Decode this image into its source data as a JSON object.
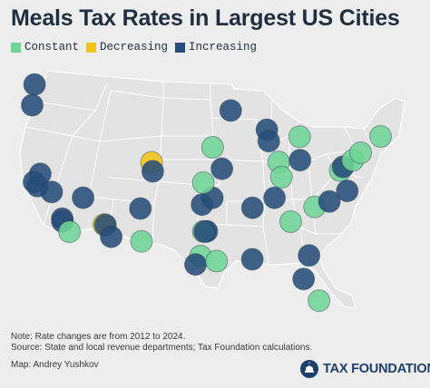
{
  "title": "Meals Tax Rates in Largest US Cities",
  "legend": [
    {
      "label": "Constant",
      "color": "#6fd596"
    },
    {
      "label": "Decreasing",
      "color": "#f2c318"
    },
    {
      "label": "Increasing",
      "color": "#274d7a"
    }
  ],
  "colors": {
    "constant": "#6fd596",
    "decreasing": "#f2c318",
    "increasing": "#274d7a",
    "land": "#e3e3e3",
    "border": "#ffffff",
    "background": "#ededed"
  },
  "note_line1": "Note: Rate changes are from 2012 to 2024.",
  "note_line2": "Source: State and local revenue departments; Tax Foundation calculations.",
  "credit": "Map: Andrey Yushkov",
  "brand": {
    "name": "TAX FOUNDATION",
    "icon": "capitol-dome-icon"
  },
  "cities": [
    {
      "lon": -122.33,
      "lat": 47.61,
      "status": "increasing"
    },
    {
      "lon": -122.68,
      "lat": 45.52,
      "status": "increasing"
    },
    {
      "lon": -122.42,
      "lat": 37.77,
      "status": "increasing"
    },
    {
      "lon": -121.89,
      "lat": 37.34,
      "status": "increasing"
    },
    {
      "lon": -121.49,
      "lat": 38.58,
      "status": "increasing"
    },
    {
      "lon": -119.79,
      "lat": 36.74,
      "status": "increasing"
    },
    {
      "lon": -118.24,
      "lat": 34.05,
      "status": "increasing"
    },
    {
      "lon": -118.19,
      "lat": 33.77,
      "status": "increasing"
    },
    {
      "lon": -117.16,
      "lat": 32.72,
      "status": "constant"
    },
    {
      "lon": -115.14,
      "lat": 36.17,
      "status": "increasing"
    },
    {
      "lon": -112.07,
      "lat": 33.45,
      "status": "decreasing"
    },
    {
      "lon": -111.83,
      "lat": 33.42,
      "status": "increasing"
    },
    {
      "lon": -110.97,
      "lat": 32.22,
      "status": "increasing"
    },
    {
      "lon": -106.65,
      "lat": 35.08,
      "status": "increasing"
    },
    {
      "lon": -106.49,
      "lat": 31.76,
      "status": "constant"
    },
    {
      "lon": -104.99,
      "lat": 39.74,
      "status": "decreasing"
    },
    {
      "lon": -104.82,
      "lat": 38.83,
      "status": "increasing"
    },
    {
      "lon": -97.52,
      "lat": 35.47,
      "status": "increasing"
    },
    {
      "lon": -95.99,
      "lat": 36.15,
      "status": "increasing"
    },
    {
      "lon": -94.58,
      "lat": 39.1,
      "status": "increasing"
    },
    {
      "lon": -93.27,
      "lat": 44.98,
      "status": "increasing"
    },
    {
      "lon": -95.94,
      "lat": 41.26,
      "status": "constant"
    },
    {
      "lon": -97.33,
      "lat": 37.69,
      "status": "constant"
    },
    {
      "lon": -96.8,
      "lat": 32.78,
      "status": "increasing"
    },
    {
      "lon": -97.33,
      "lat": 32.76,
      "status": "constant"
    },
    {
      "lon": -97.11,
      "lat": 32.74,
      "status": "increasing"
    },
    {
      "lon": -97.74,
      "lat": 30.27,
      "status": "constant"
    },
    {
      "lon": -98.49,
      "lat": 29.42,
      "status": "increasing"
    },
    {
      "lon": -95.37,
      "lat": 29.76,
      "status": "constant"
    },
    {
      "lon": -90.07,
      "lat": 29.95,
      "status": "increasing"
    },
    {
      "lon": -90.05,
      "lat": 35.15,
      "status": "increasing"
    },
    {
      "lon": -86.78,
      "lat": 36.16,
      "status": "increasing"
    },
    {
      "lon": -87.91,
      "lat": 43.04,
      "status": "increasing"
    },
    {
      "lon": -87.63,
      "lat": 41.88,
      "status": "increasing"
    },
    {
      "lon": -86.16,
      "lat": 39.77,
      "status": "constant"
    },
    {
      "lon": -85.76,
      "lat": 38.25,
      "status": "constant"
    },
    {
      "lon": -84.39,
      "lat": 33.75,
      "status": "constant"
    },
    {
      "lon": -83.05,
      "lat": 42.33,
      "status": "constant"
    },
    {
      "lon": -83.0,
      "lat": 39.96,
      "status": "increasing"
    },
    {
      "lon": -80.84,
      "lat": 35.23,
      "status": "constant"
    },
    {
      "lon": -78.64,
      "lat": 35.78,
      "status": "increasing"
    },
    {
      "lon": -81.66,
      "lat": 30.33,
      "status": "increasing"
    },
    {
      "lon": -82.46,
      "lat": 27.95,
      "status": "increasing"
    },
    {
      "lon": -80.19,
      "lat": 25.76,
      "status": "constant"
    },
    {
      "lon": -77.04,
      "lat": 38.91,
      "status": "constant"
    },
    {
      "lon": -76.61,
      "lat": 39.29,
      "status": "increasing"
    },
    {
      "lon": -75.17,
      "lat": 39.95,
      "status": "constant"
    },
    {
      "lon": -76.0,
      "lat": 36.85,
      "status": "increasing"
    },
    {
      "lon": -74.01,
      "lat": 40.71,
      "status": "constant"
    },
    {
      "lon": -71.06,
      "lat": 42.36,
      "status": "constant"
    }
  ]
}
